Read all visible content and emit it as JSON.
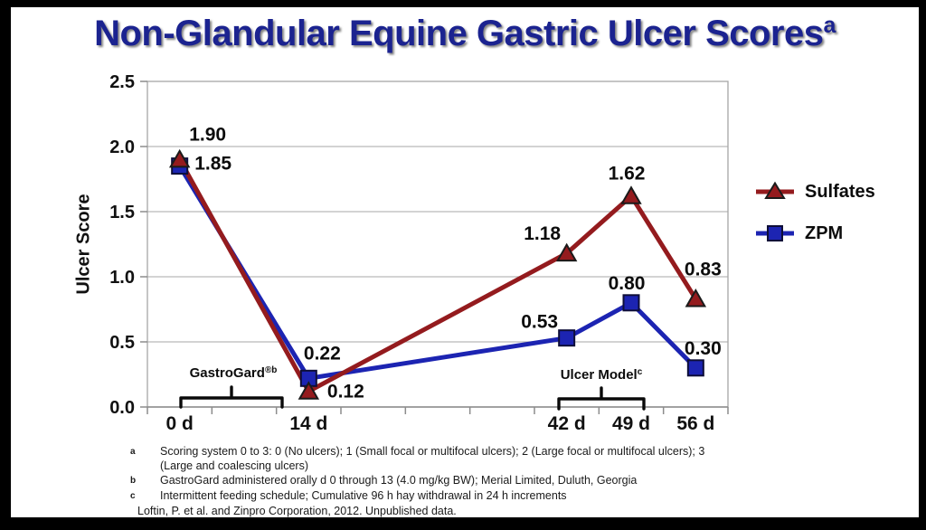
{
  "slide": {
    "title": "Non-Glandular Equine Gastric Ulcer Scores",
    "title_superscript": "a",
    "title_color": "#1B2390"
  },
  "chart_data": {
    "type": "line",
    "title": "Non-Glandular Equine Gastric Ulcer Scores",
    "xlabel": "",
    "ylabel": "Ulcer Score",
    "ylim": [
      0,
      2.5
    ],
    "y_ticks": [
      0.0,
      0.5,
      1.0,
      1.5,
      2.0,
      2.5
    ],
    "y_tick_labels": [
      "0.0",
      "0.5",
      "1.0",
      "1.5",
      "2.0",
      "2.5"
    ],
    "grid": true,
    "legend_position": "right",
    "x_slot_count": 9,
    "x_ticks": [
      {
        "slot": 0,
        "label": "0 d"
      },
      {
        "slot": 2,
        "label": "14 d"
      },
      {
        "slot": 6,
        "label": "42 d"
      },
      {
        "slot": 7,
        "label": "49 d"
      },
      {
        "slot": 8,
        "label": "56 d"
      }
    ],
    "series": [
      {
        "name": "Sulfates",
        "color": "#941B1E",
        "marker": "triangle",
        "marker_color": "#941B1E",
        "points": [
          {
            "x": "0 d",
            "slot": 0,
            "value": 1.9,
            "label": "1.90"
          },
          {
            "x": "14 d",
            "slot": 2,
            "value": 0.12,
            "label": "0.12"
          },
          {
            "x": "42 d",
            "slot": 6,
            "value": 1.18,
            "label": "1.18"
          },
          {
            "x": "49 d",
            "slot": 7,
            "value": 1.62,
            "label": "1.62"
          },
          {
            "x": "56 d",
            "slot": 8,
            "value": 0.83,
            "label": "0.83"
          }
        ]
      },
      {
        "name": "ZPM",
        "color": "#1C24B2",
        "marker": "square",
        "marker_color": "#1C24B2",
        "points": [
          {
            "x": "0 d",
            "slot": 0,
            "value": 1.85,
            "label": "1.85"
          },
          {
            "x": "14 d",
            "slot": 2,
            "value": 0.22,
            "label": "0.22"
          },
          {
            "x": "42 d",
            "slot": 6,
            "value": 0.53,
            "label": "0.53"
          },
          {
            "x": "49 d",
            "slot": 7,
            "value": 0.8,
            "label": "0.80"
          },
          {
            "x": "56 d",
            "slot": 8,
            "value": 0.3,
            "label": "0.30"
          }
        ]
      }
    ],
    "annotations": [
      {
        "label": "GastroGard",
        "sup": "®b"
      },
      {
        "label": "Ulcer Model",
        "sup": "c"
      }
    ]
  },
  "footnotes": [
    {
      "sup": "a",
      "text": "Scoring system 0 to 3: 0 (No ulcers); 1 (Small focal or multifocal ulcers); 2 (Large focal or multifocal ulcers); 3 (Large and coalescing ulcers)"
    },
    {
      "sup": "b",
      "text": "GastroGard administered orally d 0 through 13 (4.0 mg/kg BW); Merial Limited, Duluth, Georgia"
    },
    {
      "sup": "c",
      "text": "Intermittent feeding schedule; Cumulative 96 h hay withdrawal in 24 h increments"
    }
  ],
  "source_line": "Loftin, P. et al. and Zinpro Corporation, 2012. Unpublished data."
}
